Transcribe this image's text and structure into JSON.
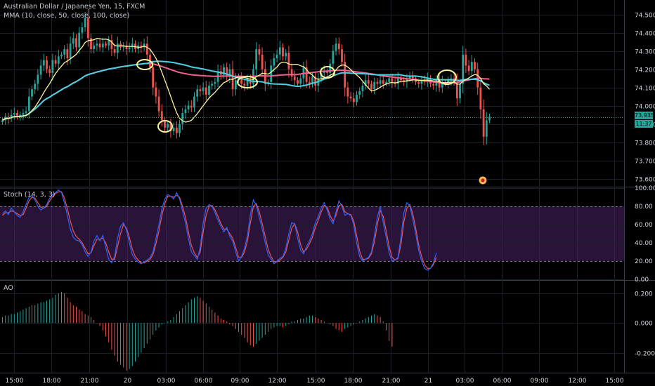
{
  "header": {
    "symbol_title": "Australian Dollar / Japanese Yen, 15, FXCM",
    "mma_label": "MMA (10, close, 50, close, 100, close)"
  },
  "stoch_label": "Stoch (14, 3, 3)",
  "ao_label": "AO",
  "current_price": "73.935",
  "countdown": "11:37",
  "colors": {
    "up": "#26a69a",
    "down": "#ef5350",
    "ma10": "#fff59d",
    "ma50": "#4dd0e1",
    "ma100": "#f06292",
    "stoch_k": "#2962ff",
    "stoch_d": "#ef5350",
    "band": "#4a2368",
    "ao_up": "#26a69a",
    "ao_down": "#ef5350",
    "price_tag": "#26a69a"
  },
  "chart_data": [
    {
      "type": "candlestick",
      "title": "Australian Dollar / Japanese Yen, 15, FXCM",
      "y_ticks": [
        "74.500",
        "74.400",
        "74.300",
        "74.200",
        "74.100",
        "74.000",
        "73.900",
        "73.800",
        "73.700",
        "73.600"
      ],
      "ylim": [
        73.56,
        74.56
      ],
      "x_ticks": [
        "15:00",
        "18:00",
        "21:00",
        "20",
        "03:00",
        "06:00",
        "09:00",
        "12:00",
        "15:00",
        "18:00",
        "21:00",
        "21",
        "03:00",
        "06:00",
        "09:00",
        "12:00",
        "15:00"
      ],
      "close": [
        73.92,
        73.94,
        73.93,
        73.95,
        73.96,
        73.94,
        73.95,
        73.96,
        73.97,
        74.05,
        74.09,
        74.12,
        74.17,
        74.22,
        74.25,
        74.2,
        74.18,
        74.25,
        74.23,
        74.27,
        74.28,
        74.31,
        74.26,
        74.34,
        74.37,
        74.32,
        74.4,
        74.43,
        74.48,
        74.37,
        74.31,
        74.33,
        74.34,
        74.32,
        74.34,
        74.33,
        74.36,
        74.31,
        74.29,
        74.34,
        74.32,
        74.33,
        74.31,
        74.32,
        74.34,
        74.31,
        74.33,
        74.32,
        74.34,
        74.28,
        74.21,
        74.1,
        74.05,
        73.97,
        73.92,
        73.88,
        73.9,
        73.86,
        73.88,
        73.85,
        73.9,
        73.96,
        73.98,
        74.0,
        73.99,
        74.05,
        74.09,
        74.08,
        74.1,
        74.06,
        74.11,
        74.12,
        74.13,
        74.19,
        74.17,
        74.21,
        74.16,
        74.2,
        74.09,
        74.14,
        74.16,
        74.12,
        74.11,
        74.14,
        74.12,
        74.2,
        74.31,
        74.28,
        74.2,
        74.12,
        74.13,
        74.22,
        74.26,
        74.28,
        74.32,
        74.27,
        74.29,
        74.2,
        74.16,
        74.14,
        74.12,
        74.15,
        74.21,
        74.13,
        74.12,
        74.16,
        74.11,
        74.15,
        74.18,
        74.19,
        74.18,
        74.23,
        74.3,
        74.34,
        74.31,
        74.24,
        74.1,
        74.05,
        74.04,
        74.02,
        74.06,
        74.08,
        74.11,
        74.14,
        74.12,
        74.09,
        74.13,
        74.12,
        74.14,
        74.12,
        74.13,
        74.15,
        74.13,
        74.12,
        74.15,
        74.14,
        74.13,
        74.15,
        74.16,
        74.15,
        74.13,
        74.12,
        74.14,
        74.13,
        74.15,
        74.12,
        74.11,
        74.14,
        74.1,
        74.13,
        74.12,
        74.14,
        74.15,
        74.13,
        74.04,
        74.12,
        74.28,
        74.22,
        74.19,
        74.24,
        74.2,
        74.1,
        73.98,
        73.83,
        73.92,
        73.94
      ]
    },
    {
      "type": "line",
      "title": "Stoch (14, 3, 3)",
      "y_ticks": [
        "100.00",
        "80.00",
        "60.00",
        "40.00",
        "20.00",
        "0.00"
      ],
      "ylim": [
        0,
        100
      ],
      "band": [
        20,
        80
      ],
      "series": [
        {
          "name": "%K",
          "values": [
            72,
            75,
            71,
            78,
            74,
            70,
            68,
            74,
            82,
            90,
            92,
            87,
            80,
            76,
            78,
            82,
            89,
            93,
            95,
            98,
            95,
            84,
            70,
            55,
            46,
            43,
            42,
            38,
            30,
            25,
            30,
            42,
            48,
            42,
            48,
            35,
            22,
            18,
            25,
            45,
            58,
            62,
            54,
            40,
            27,
            22,
            19,
            17,
            19,
            21,
            24,
            30,
            45,
            60,
            77,
            88,
            93,
            91,
            88,
            95,
            88,
            75,
            62,
            45,
            30,
            26,
            22,
            35,
            62,
            78,
            82,
            80,
            73,
            65,
            58,
            52,
            57,
            47,
            42,
            30,
            20,
            25,
            34,
            48,
            71,
            87,
            81,
            68,
            55,
            40,
            27,
            22,
            17,
            20,
            23,
            25,
            34,
            50,
            62,
            61,
            45,
            32,
            28,
            36,
            42,
            50,
            62,
            69,
            78,
            84,
            76,
            66,
            61,
            74,
            86,
            80,
            70,
            72,
            70,
            60,
            40,
            25,
            20,
            22,
            24,
            30,
            48,
            68,
            80,
            62,
            46,
            29,
            20,
            21,
            24,
            46,
            73,
            84,
            81,
            66,
            50,
            32,
            20,
            12,
            10,
            12,
            18,
            29
          ]
        },
        {
          "name": "%D",
          "values": [
            70,
            73,
            73,
            75,
            74,
            72,
            70,
            71,
            78,
            86,
            90,
            89,
            84,
            79,
            78,
            80,
            86,
            91,
            94,
            96,
            96,
            89,
            77,
            64,
            53,
            47,
            44,
            40,
            34,
            28,
            29,
            37,
            44,
            44,
            45,
            40,
            30,
            22,
            22,
            36,
            50,
            60,
            56,
            46,
            33,
            25,
            21,
            18,
            18,
            20,
            22,
            27,
            39,
            53,
            70,
            83,
            91,
            91,
            90,
            92,
            90,
            80,
            68,
            52,
            37,
            29,
            24,
            30,
            52,
            70,
            80,
            81,
            76,
            69,
            61,
            55,
            55,
            50,
            45,
            35,
            24,
            24,
            30,
            42,
            62,
            80,
            83,
            74,
            61,
            47,
            33,
            25,
            19,
            19,
            21,
            24,
            30,
            43,
            56,
            61,
            52,
            38,
            30,
            33,
            39,
            46,
            57,
            65,
            74,
            81,
            79,
            70,
            64,
            70,
            81,
            82,
            74,
            72,
            71,
            64,
            48,
            31,
            22,
            22,
            23,
            28,
            41,
            60,
            75,
            69,
            53,
            36,
            24,
            21,
            23,
            38,
            63,
            78,
            82,
            72,
            56,
            38,
            25,
            16,
            12,
            12,
            16,
            24
          ]
        }
      ]
    },
    {
      "type": "bar",
      "title": "AO",
      "y_ticks": [
        "0.200",
        "0.000",
        "-0.200"
      ],
      "ylim": [
        -0.33,
        0.28
      ],
      "values": [
        0.04,
        0.05,
        0.05,
        0.06,
        0.06,
        0.07,
        0.08,
        0.09,
        0.1,
        0.11,
        0.12,
        0.12,
        0.13,
        0.14,
        0.14,
        0.15,
        0.16,
        0.17,
        0.19,
        0.2,
        0.21,
        0.2,
        0.17,
        0.14,
        0.12,
        0.11,
        0.09,
        0.08,
        0.06,
        0.05,
        0.04,
        0.02,
        0.0,
        -0.02,
        -0.05,
        -0.09,
        -0.13,
        -0.18,
        -0.22,
        -0.26,
        -0.28,
        -0.3,
        -0.32,
        -0.31,
        -0.29,
        -0.26,
        -0.23,
        -0.2,
        -0.17,
        -0.14,
        -0.11,
        -0.08,
        -0.05,
        -0.03,
        -0.01,
        0.0,
        0.01,
        0.02,
        0.04,
        0.06,
        0.08,
        0.1,
        0.12,
        0.14,
        0.16,
        0.17,
        0.18,
        0.17,
        0.15,
        0.13,
        0.11,
        0.09,
        0.07,
        0.05,
        0.03,
        0.02,
        0.01,
        -0.01,
        -0.02,
        -0.04,
        -0.06,
        -0.08,
        -0.1,
        -0.13,
        -0.15,
        -0.16,
        -0.14,
        -0.12,
        -0.1,
        -0.08,
        -0.06,
        -0.04,
        -0.03,
        -0.02,
        -0.02,
        -0.03,
        -0.02,
        -0.01,
        0.01,
        0.01,
        0.02,
        0.03,
        0.03,
        0.04,
        0.05,
        0.05,
        0.04,
        0.03,
        0.02,
        0.01,
        0.0,
        -0.01,
        -0.02,
        -0.04,
        -0.05,
        -0.06,
        -0.04,
        -0.03,
        -0.02,
        -0.01,
        0.0,
        0.01,
        0.02,
        0.03,
        0.04,
        0.05,
        0.06,
        0.05,
        0.04,
        0.01,
        -0.05,
        -0.12,
        -0.16
      ]
    }
  ]
}
